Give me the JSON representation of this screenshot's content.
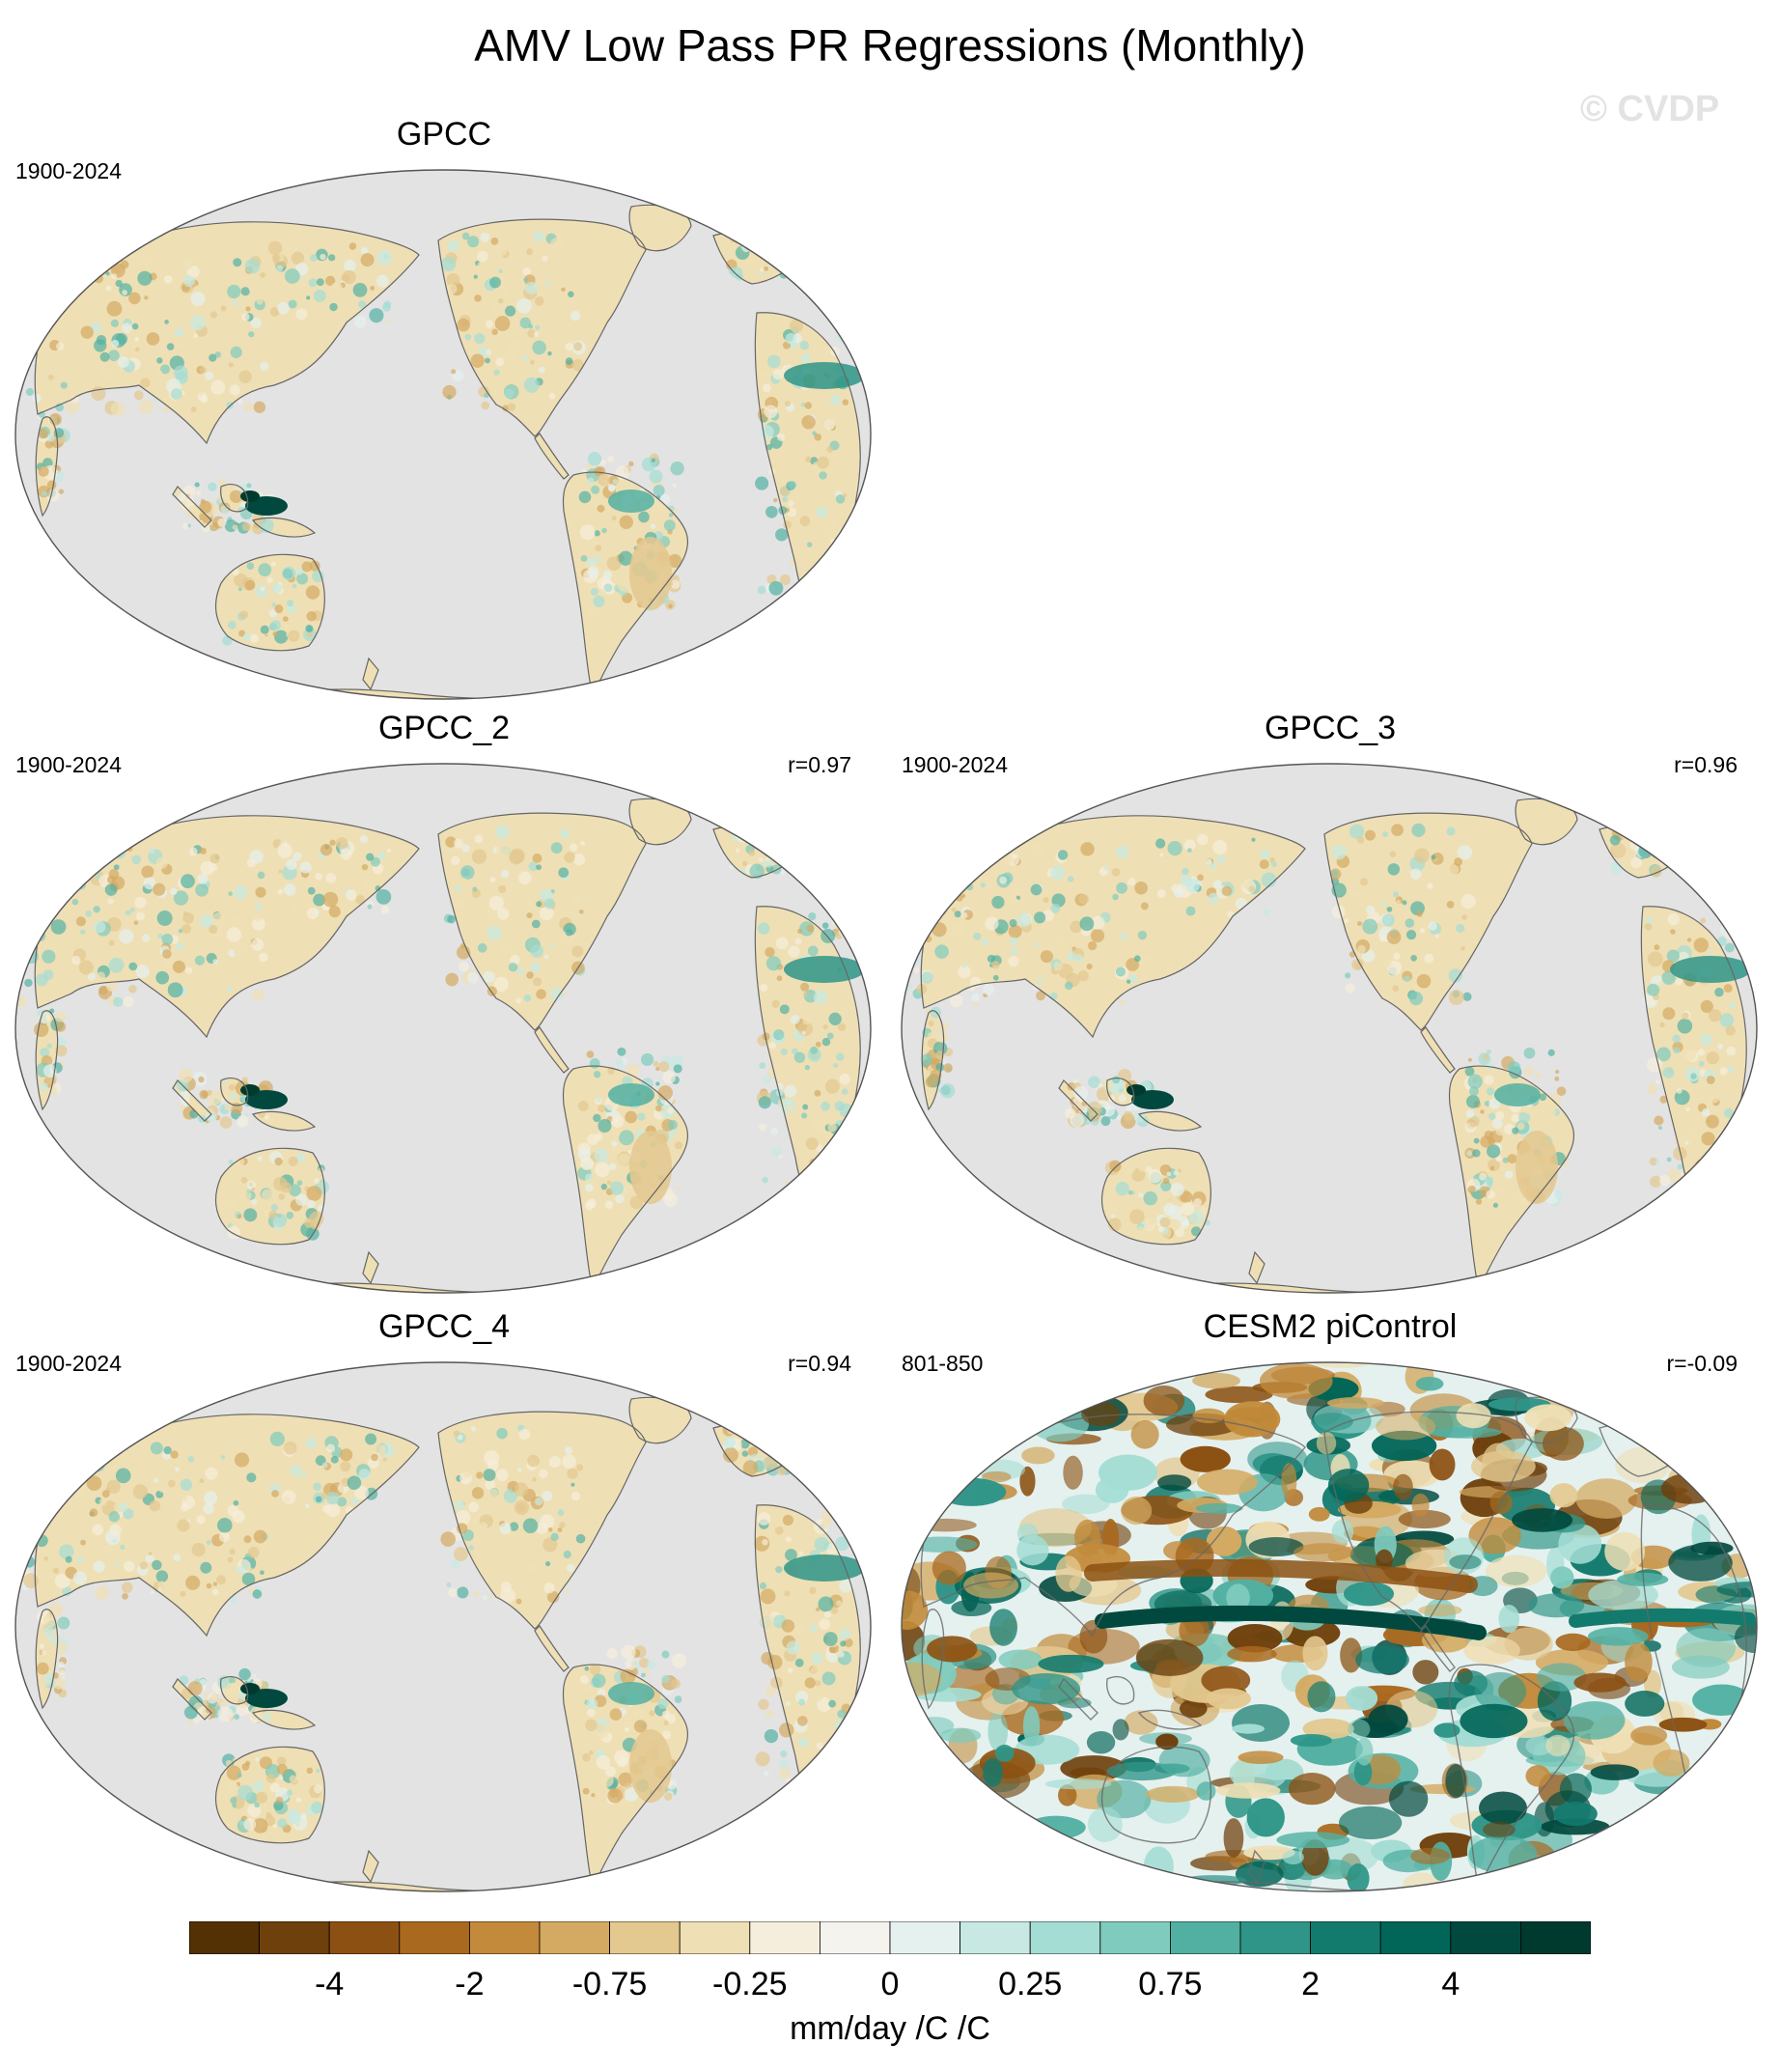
{
  "title": "AMV Low Pass PR Regressions (Monthly)",
  "watermark": "© CVDP",
  "panels": [
    {
      "title": "GPCC",
      "years": "1900-2024",
      "corr": "",
      "style": "obs"
    },
    {
      "title": "GPCC_2",
      "years": "1900-2024",
      "corr": "r=0.97",
      "style": "obs"
    },
    {
      "title": "GPCC_3",
      "years": "1900-2024",
      "corr": "r=0.96",
      "style": "obs"
    },
    {
      "title": "GPCC_4",
      "years": "1900-2024",
      "corr": "r=0.94",
      "style": "obs"
    },
    {
      "title": "CESM2 piControl",
      "years": "801-850",
      "corr": "r=-0.09",
      "style": "model"
    }
  ],
  "colorbar": {
    "colors": [
      "#543005",
      "#6e400b",
      "#8c5112",
      "#a9691f",
      "#c28a3a",
      "#d4aa62",
      "#e3c88f",
      "#efdfb5",
      "#f5eedc",
      "#f5f3ed",
      "#e5f1ef",
      "#c8e9e3",
      "#a4ddd4",
      "#7fcbbd",
      "#52b0a2",
      "#2e9588",
      "#137a6e",
      "#016557",
      "#01493e",
      "#003a2f"
    ],
    "tick_labels": [
      "-4",
      "-2",
      "-0.75",
      "-0.25",
      "0",
      "0.25",
      "0.75",
      "2",
      "4"
    ],
    "units": "mm/day /C /C"
  },
  "map_colors": {
    "ocean": "#e3e3e3",
    "land": "#efdfb5",
    "coast": "#666666"
  }
}
